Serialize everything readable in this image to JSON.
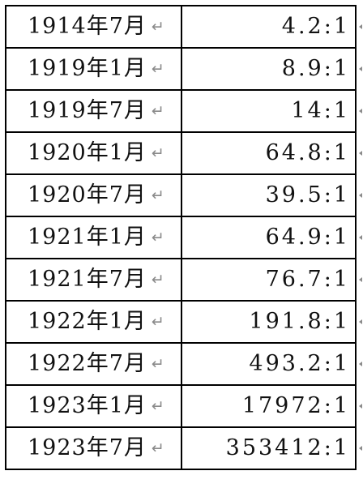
{
  "table": {
    "rows": [
      {
        "date": "1914年7月",
        "ratio": "4.2:1"
      },
      {
        "date": "1919年1月",
        "ratio": "8.9:1"
      },
      {
        "date": "1919年7月",
        "ratio": "14:1"
      },
      {
        "date": "1920年1月",
        "ratio": "64.8:1"
      },
      {
        "date": "1920年7月",
        "ratio": "39.5:1"
      },
      {
        "date": "1921年1月",
        "ratio": "64.9:1"
      },
      {
        "date": "1921年7月",
        "ratio": "76.7:1"
      },
      {
        "date": "1922年1月",
        "ratio": "191.8:1"
      },
      {
        "date": "1922年7月",
        "ratio": "493.2:1"
      },
      {
        "date": "1923年1月",
        "ratio": "17972:1"
      },
      {
        "date": "1923年7月",
        "ratio": "353412:1"
      }
    ],
    "paragraph_mark": "↵"
  }
}
